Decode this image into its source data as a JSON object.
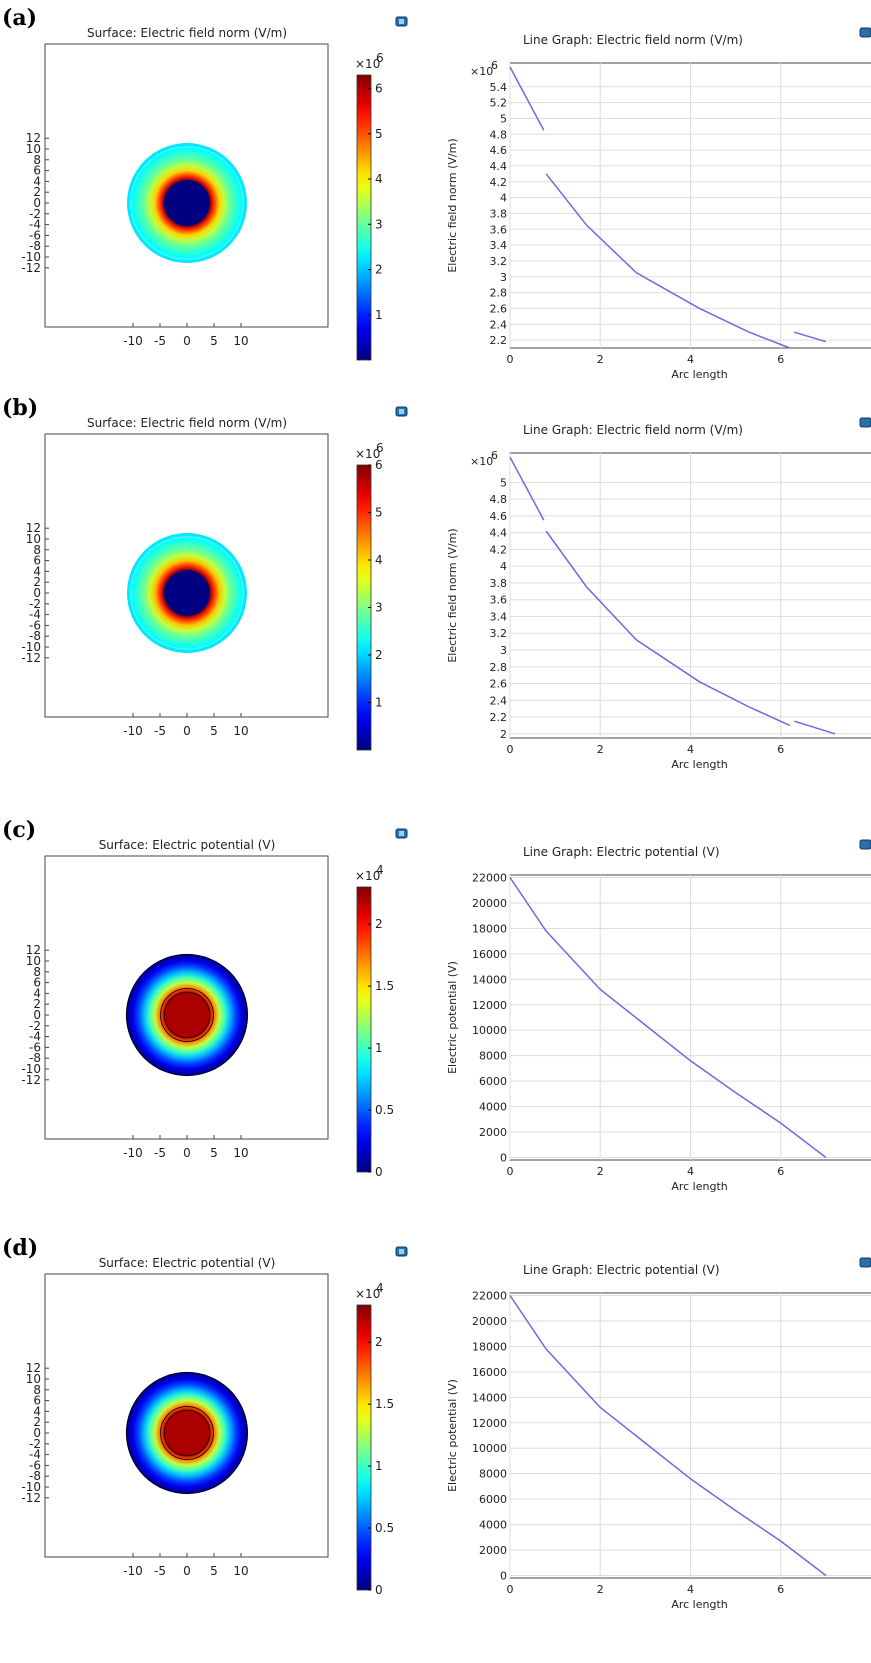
{
  "panels": [
    {
      "label": "(a)",
      "surface": {
        "title": "Surface: Electric field norm (V/m)",
        "kind": "field",
        "xticks": [
          "-10",
          "-5",
          "0",
          "5",
          "10"
        ],
        "yticks": [
          "12",
          "10",
          "8",
          "6",
          "4",
          "2",
          "0",
          "-2",
          "-4",
          "-6",
          "-8",
          "-10",
          "-12"
        ],
        "colorbar": {
          "exponent": "×10",
          "power": "6",
          "max": 6.3,
          "ticks": [
            "6",
            "5",
            "4",
            "3",
            "2",
            "1"
          ],
          "tick_values": [
            6,
            5,
            4,
            3,
            2,
            1
          ]
        }
      },
      "line": {
        "title": "Line Graph: Electric field norm (V/m)",
        "ylabel": "Electric field norm (V/m)",
        "xlabel": "Arc length",
        "y_exponent": "×10",
        "y_power": "6",
        "xticks": [
          "0",
          "2",
          "4",
          "6"
        ],
        "yticks": [
          "5.4",
          "5.2",
          "5",
          "4.8",
          "4.6",
          "4.4",
          "4.2",
          "4",
          "3.8",
          "3.6",
          "3.4",
          "3.2",
          "3",
          "2.8",
          "2.6",
          "2.4",
          "2.2"
        ]
      }
    },
    {
      "label": "(b)",
      "surface": {
        "title": "Surface: Electric field norm (V/m)",
        "kind": "field",
        "xticks": [
          "-10",
          "-5",
          "0",
          "5",
          "10"
        ],
        "yticks": [
          "12",
          "10",
          "8",
          "6",
          "4",
          "2",
          "0",
          "-2",
          "-4",
          "-6",
          "-8",
          "-10",
          "-12"
        ],
        "colorbar": {
          "exponent": "×10",
          "power": "6",
          "max": 6.0,
          "ticks": [
            "6",
            "5",
            "4",
            "3",
            "2",
            "1"
          ],
          "tick_values": [
            6,
            5,
            4,
            3,
            2,
            1
          ]
        }
      },
      "line": {
        "title": "Line Graph: Electric field norm (V/m)",
        "ylabel": "Electric field norm (V/m)",
        "xlabel": "Arc length",
        "y_exponent": "×10",
        "y_power": "6",
        "xticks": [
          "0",
          "2",
          "4",
          "6"
        ],
        "yticks": [
          "5",
          "4.8",
          "4.6",
          "4.4",
          "4.2",
          "4",
          "3.8",
          "3.6",
          "3.4",
          "3.2",
          "3",
          "2.8",
          "2.6",
          "2.4",
          "2.2",
          "2"
        ]
      }
    },
    {
      "label": "(c)",
      "surface": {
        "title": "Surface: Electric potential (V)",
        "kind": "potential",
        "xticks": [
          "-10",
          "-5",
          "0",
          "5",
          "10"
        ],
        "yticks": [
          "12",
          "10",
          "8",
          "6",
          "4",
          "2",
          "0",
          "-2",
          "-4",
          "-6",
          "-8",
          "-10",
          "-12"
        ],
        "colorbar": {
          "exponent": "×10",
          "power": "4",
          "max": 2.3,
          "ticks": [
            "2",
            "1.5",
            "1",
            "0.5",
            "0"
          ],
          "tick_values": [
            2,
            1.5,
            1,
            0.5,
            0
          ]
        }
      },
      "line": {
        "title": "Line Graph: Electric potential (V)",
        "ylabel": "Electric potential (V)",
        "xlabel": "Arc length",
        "y_exponent": "",
        "y_power": "",
        "xticks": [
          "0",
          "2",
          "4",
          "6"
        ],
        "yticks": [
          "22000",
          "20000",
          "18000",
          "16000",
          "14000",
          "12000",
          "10000",
          "8000",
          "6000",
          "4000",
          "2000",
          "0"
        ]
      }
    },
    {
      "label": "(d)",
      "surface": {
        "title": "Surface: Electric potential (V)",
        "kind": "potential",
        "xticks": [
          "-10",
          "-5",
          "0",
          "5",
          "10"
        ],
        "yticks": [
          "12",
          "10",
          "8",
          "6",
          "4",
          "2",
          "0",
          "-2",
          "-4",
          "-6",
          "-8",
          "-10",
          "-12"
        ],
        "colorbar": {
          "exponent": "×10",
          "power": "4",
          "max": 2.3,
          "ticks": [
            "2",
            "1.5",
            "1",
            "0.5",
            "0"
          ],
          "tick_values": [
            2,
            1.5,
            1,
            0.5,
            0
          ]
        }
      },
      "line": {
        "title": "Line Graph: Electric potential (V)",
        "ylabel": "Electric potential (V)",
        "xlabel": "Arc length",
        "y_exponent": "",
        "y_power": "",
        "xticks": [
          "0",
          "2",
          "4",
          "6"
        ],
        "yticks": [
          "22000",
          "20000",
          "18000",
          "16000",
          "14000",
          "12000",
          "10000",
          "8000",
          "6000",
          "4000",
          "2000",
          "0"
        ]
      }
    }
  ],
  "chart_data": [
    {
      "type": "heatmap",
      "title": "Surface: Electric field norm (V/m)",
      "xlim": [
        -12,
        12
      ],
      "ylim": [
        -12.5,
        12.5
      ],
      "colorbar_range": [
        0,
        6300000
      ],
      "colormap": "jet",
      "radial_profile": {
        "r": [
          0,
          4.2,
          4.3,
          5,
          6,
          7,
          8,
          9,
          10,
          11,
          11.1
        ],
        "value": [
          0,
          0,
          6200000,
          5200000,
          4200000,
          3500000,
          3000000,
          2700000,
          2400000,
          2200000,
          2100000
        ]
      }
    },
    {
      "type": "line",
      "title": "Line Graph: Electric field norm (V/m)",
      "xlabel": "Arc length",
      "ylabel": "Electric field norm (V/m)",
      "xlim": [
        0,
        7
      ],
      "ylim": [
        2100000,
        5700000
      ],
      "series": [
        {
          "x": [
            0,
            0.75
          ],
          "y": [
            5650000,
            4850000
          ]
        },
        {
          "x": [
            0.8,
            1.7,
            2.8,
            4.2,
            5.3,
            6.2
          ],
          "y": [
            4300000,
            3650000,
            3050000,
            2600000,
            2300000,
            2100000
          ]
        },
        {
          "x": [
            6.3,
            7
          ],
          "y": [
            2300000,
            2180000
          ]
        }
      ]
    },
    {
      "type": "heatmap",
      "title": "Surface: Electric field norm (V/m)",
      "xlim": [
        -12,
        12
      ],
      "ylim": [
        -12.5,
        12.5
      ],
      "colorbar_range": [
        0,
        6000000
      ],
      "colormap": "jet",
      "radial_profile": {
        "r": [
          0,
          4.2,
          4.3,
          5,
          6,
          7,
          8,
          9,
          10,
          11,
          11.1
        ],
        "value": [
          0,
          0,
          5900000,
          5000000,
          4100000,
          3400000,
          2900000,
          2600000,
          2300000,
          2100000,
          2000000
        ]
      }
    },
    {
      "type": "line",
      "title": "Line Graph: Electric field norm (V/m)",
      "xlabel": "Arc length",
      "ylabel": "Electric field norm (V/m)",
      "xlim": [
        0,
        7.2
      ],
      "ylim": [
        1950000,
        5350000
      ],
      "series": [
        {
          "x": [
            0,
            0.75
          ],
          "y": [
            5300000,
            4550000
          ]
        },
        {
          "x": [
            0.8,
            1.7,
            2.8,
            4.2,
            5.3,
            6.2
          ],
          "y": [
            4420000,
            3750000,
            3120000,
            2620000,
            2320000,
            2100000
          ]
        },
        {
          "x": [
            6.3,
            7.2
          ],
          "y": [
            2150000,
            2000000
          ]
        }
      ]
    },
    {
      "type": "heatmap",
      "title": "Surface: Electric potential (V)",
      "xlim": [
        -12,
        12
      ],
      "ylim": [
        -12.5,
        12.5
      ],
      "colorbar_range": [
        0,
        23000
      ],
      "colormap": "jet",
      "radial_profile": {
        "r": [
          0,
          4.2,
          5,
          6,
          7,
          8,
          9,
          10,
          11,
          11.2
        ],
        "value": [
          22000,
          22000,
          17500,
          13000,
          10000,
          7000,
          4500,
          2500,
          500,
          0
        ]
      }
    },
    {
      "type": "line",
      "title": "Line Graph: Electric potential (V)",
      "xlabel": "Arc length",
      "ylabel": "Electric potential (V)",
      "xlim": [
        0,
        7
      ],
      "ylim": [
        -200,
        22200
      ],
      "series": [
        {
          "x": [
            0,
            0.8,
            2,
            3,
            4,
            5,
            6,
            7
          ],
          "y": [
            22000,
            17800,
            13200,
            10400,
            7600,
            5100,
            2700,
            0
          ]
        }
      ]
    },
    {
      "type": "heatmap",
      "title": "Surface: Electric potential (V)",
      "xlim": [
        -12,
        12
      ],
      "ylim": [
        -12.5,
        12.5
      ],
      "colorbar_range": [
        0,
        23000
      ],
      "colormap": "jet",
      "radial_profile": {
        "r": [
          0,
          4.2,
          5,
          6,
          7,
          8,
          9,
          10,
          11,
          11.2
        ],
        "value": [
          22000,
          22000,
          17500,
          13000,
          10000,
          7000,
          4500,
          2500,
          500,
          0
        ]
      }
    },
    {
      "type": "line",
      "title": "Line Graph: Electric potential (V)",
      "xlabel": "Arc length",
      "ylabel": "Electric potential (V)",
      "xlim": [
        0,
        7
      ],
      "ylim": [
        -200,
        22200
      ],
      "series": [
        {
          "x": [
            0,
            0.8,
            2,
            3,
            4,
            5,
            6,
            7
          ],
          "y": [
            22000,
            17800,
            13200,
            10400,
            7600,
            5100,
            2700,
            0
          ]
        }
      ]
    }
  ]
}
